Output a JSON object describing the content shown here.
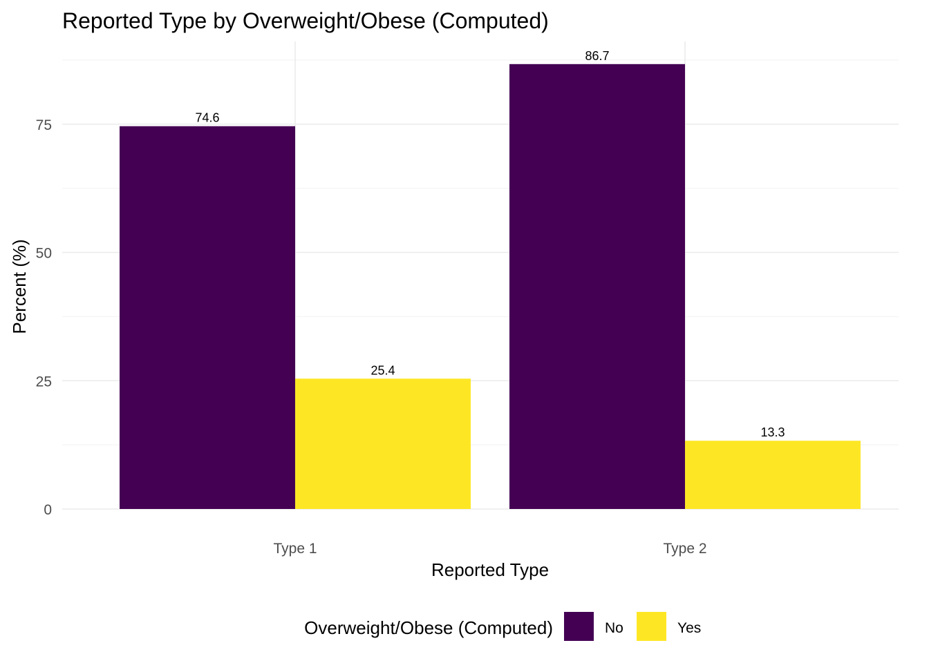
{
  "chart_data": {
    "type": "bar",
    "title": "Reported Type by Overweight/Obese (Computed)",
    "xlabel": "Reported Type",
    "ylabel": "Percent (%)",
    "categories": [
      "Type 1",
      "Type 2"
    ],
    "series": [
      {
        "name": "No",
        "values": [
          74.6,
          86.7
        ],
        "color": "#440154"
      },
      {
        "name": "Yes",
        "values": [
          25.4,
          13.3
        ],
        "color": "#FDE725"
      }
    ],
    "data_labels": [
      [
        "74.6",
        "86.7"
      ],
      [
        "25.4",
        "13.3"
      ]
    ],
    "ylim": [
      0,
      90
    ],
    "yticks": [
      0,
      25,
      50,
      75
    ],
    "grid": true,
    "legend": {
      "title": "Overweight/Obese (Computed)",
      "position": "bottom"
    }
  }
}
